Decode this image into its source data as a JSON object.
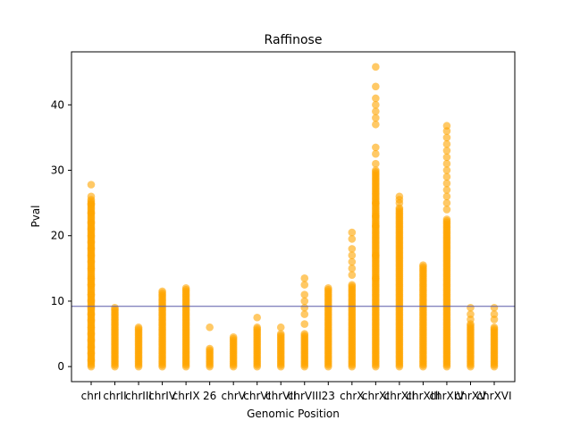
{
  "chart_data": {
    "type": "scatter",
    "title": "Raffinose",
    "xlabel": "Genomic Position",
    "ylabel": "Pval",
    "ylim": [
      -2.3,
      48.1
    ],
    "yticks": [
      0,
      10,
      20,
      30,
      40
    ],
    "grid": false,
    "legend": "none",
    "point_color": "#FFA500",
    "threshold": {
      "y": 9.2,
      "color": "#5a5aa8"
    },
    "categories": [
      "chrI",
      "chrII",
      "chrIII",
      "chrIV",
      "chrIX",
      "26",
      "chrV",
      "chrVI",
      "chrVII",
      "chrVIII",
      "23",
      "chrX",
      "chrXI",
      "chrXII",
      "chrXIII",
      "chrXIV",
      "chrXV",
      "chrXVI"
    ],
    "groups": [
      {
        "category": "chrI",
        "max": 25.5,
        "outliers": [
          27.8,
          26.0,
          24.8,
          23.5,
          22.0,
          21.0,
          20.0,
          19.0,
          18.0,
          17.0,
          16.0,
          15.0,
          13.5,
          12.5,
          11.0,
          10.0,
          9.0,
          8.0,
          7.0,
          6.0,
          5.0,
          4.0,
          3.0,
          2.0,
          1.0
        ]
      },
      {
        "category": "chrII",
        "max": 9.0,
        "outliers": []
      },
      {
        "category": "chrIII",
        "max": 6.2,
        "outliers": []
      },
      {
        "category": "chrIV",
        "max": 11.5,
        "outliers": []
      },
      {
        "category": "chrIX",
        "max": 12.0,
        "outliers": []
      },
      {
        "category": "26",
        "max": 2.8,
        "outliers": [
          6.0
        ]
      },
      {
        "category": "chrV",
        "max": 4.5,
        "outliers": []
      },
      {
        "category": "chrVI",
        "max": 6.2,
        "outliers": [
          7.5
        ]
      },
      {
        "category": "chrVII",
        "max": 5.2,
        "outliers": [
          6.0
        ]
      },
      {
        "category": "chrVIII",
        "max": 5.0,
        "outliers": [
          13.5,
          12.5,
          11.0,
          10.0,
          9.0,
          8.0,
          6.5
        ]
      },
      {
        "category": "23",
        "max": 12.2,
        "outliers": []
      },
      {
        "category": "chrX",
        "max": 12.5,
        "outliers": [
          20.5,
          19.5,
          18.0,
          17.0,
          16.0,
          15.0,
          14.0
        ]
      },
      {
        "category": "chrXI",
        "max": 30.0,
        "outliers": [
          45.8,
          42.8,
          41.0,
          40.0,
          39.0,
          38.0,
          37.0,
          33.5,
          32.5,
          31.0,
          25.0,
          23.0,
          21.5,
          17.0,
          13.5
        ]
      },
      {
        "category": "chrXII",
        "max": 24.3,
        "outliers": [
          26.0,
          25.5,
          25.0
        ]
      },
      {
        "category": "chrXIII",
        "max": 15.5,
        "outliers": []
      },
      {
        "category": "chrXIV",
        "max": 22.5,
        "outliers": [
          36.8,
          36.0,
          35.0,
          34.0,
          33.0,
          32.0,
          31.0,
          30.0,
          29.0,
          28.0,
          27.0,
          26.0,
          25.0,
          24.0
        ]
      },
      {
        "category": "chrXV",
        "max": 6.5,
        "outliers": [
          9.0,
          8.0,
          7.2
        ]
      }
    ]
  }
}
